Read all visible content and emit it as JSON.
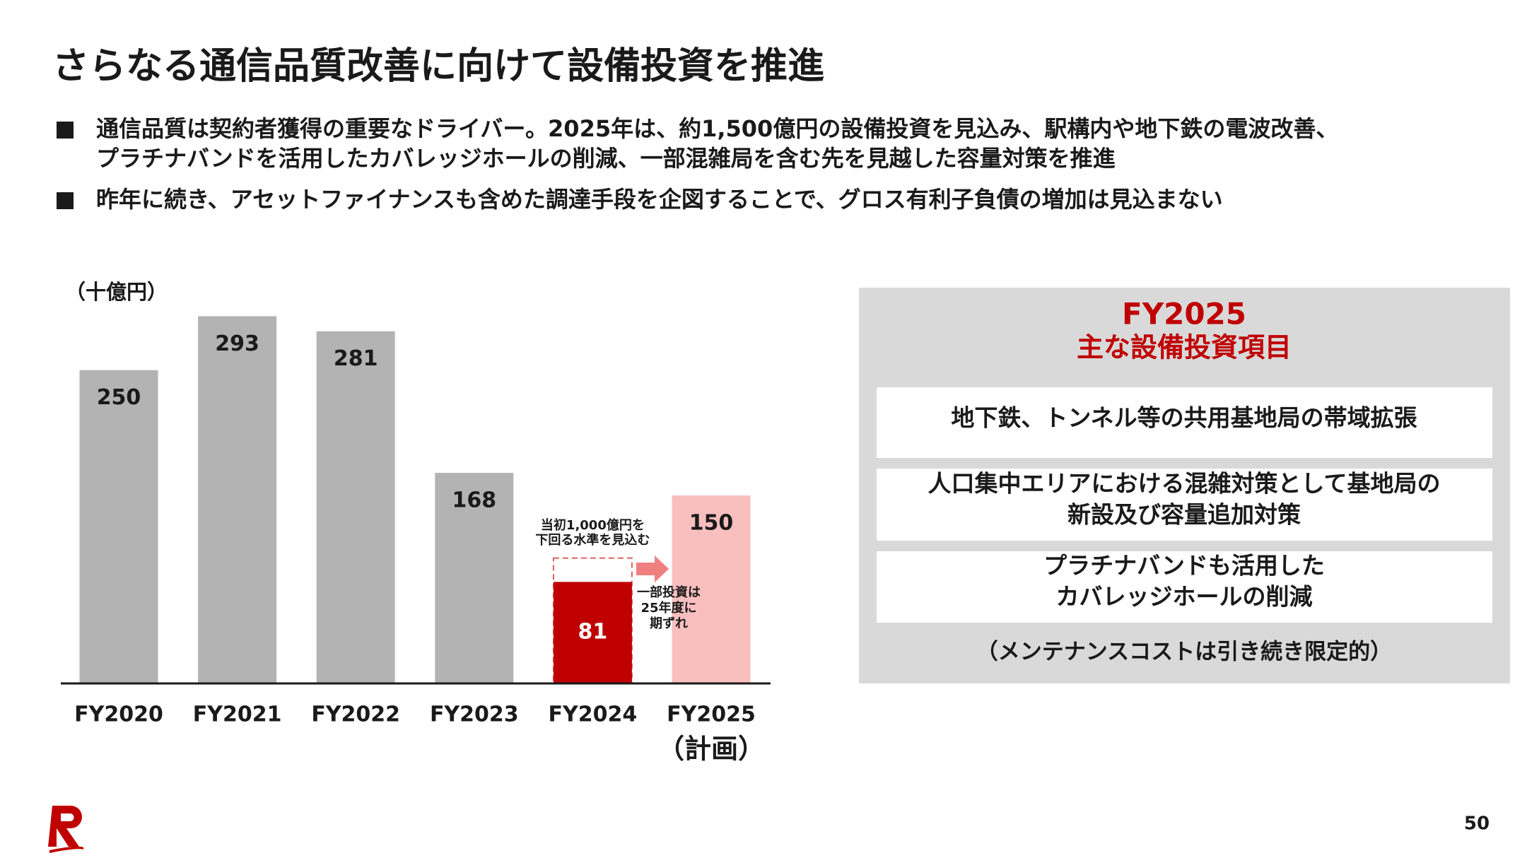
{
  "title": "さらなる通信品質改善に向けて設備投資を推進",
  "bullets": [
    {
      "lines": [
        "通信品質は契約者獲得の重要なドライバー。2025年は、約1,500億円の設備投資を見込み、駅構内や地下鉄の電波改善、",
        "プラチナバンドを活用したカバレッジホールの削減、一部混雑局を含む先を見越した容量対策を推進"
      ]
    },
    {
      "lines": [
        "昨年に続き、アセットファイナンスも含めた調達手段を企図することで、グロス有利子負債の増加は見込まない"
      ]
    }
  ],
  "chart_data": {
    "type": "bar",
    "y_label": "（十億円）",
    "categories": [
      "FY2020",
      "FY2021",
      "FY2022",
      "FY2023",
      "FY2024",
      "FY2025"
    ],
    "category_note": "（計画）",
    "values": [
      250,
      293,
      281,
      168,
      81,
      150
    ],
    "planned_values": [
      null,
      null,
      null,
      null,
      100,
      null
    ],
    "colors": [
      "#b3b3b3",
      "#b3b3b3",
      "#b3b3b3",
      "#b3b3b3",
      "#c00000",
      "#f9bfbf"
    ],
    "label_colors": [
      "#1a1a1a",
      "#1a1a1a",
      "#1a1a1a",
      "#1a1a1a",
      "#ffffff",
      "#1a1a1a"
    ],
    "ylim": [
      0,
      300
    ],
    "annotations": [
      {
        "lines": [
          "当初1,000億円を",
          "下回る水準を見込む"
        ]
      },
      {
        "lines": [
          "一部投資は",
          "25年度に",
          "期ずれ"
        ]
      }
    ]
  },
  "panel": {
    "title": "FY2025",
    "subtitle": "主な設備投資項目",
    "items": [
      [
        "地下鉄、トンネル等の共用基地局の帯域拡張"
      ],
      [
        "人口集中エリアにおける混雑対策として基地局の",
        "新設及び容量追加対策"
      ],
      [
        "プラチナバンドも活用した",
        "カバレッジホールの削減"
      ]
    ],
    "note": "（メンテナンスコストは引き続き限定的）"
  },
  "page_number": "50"
}
